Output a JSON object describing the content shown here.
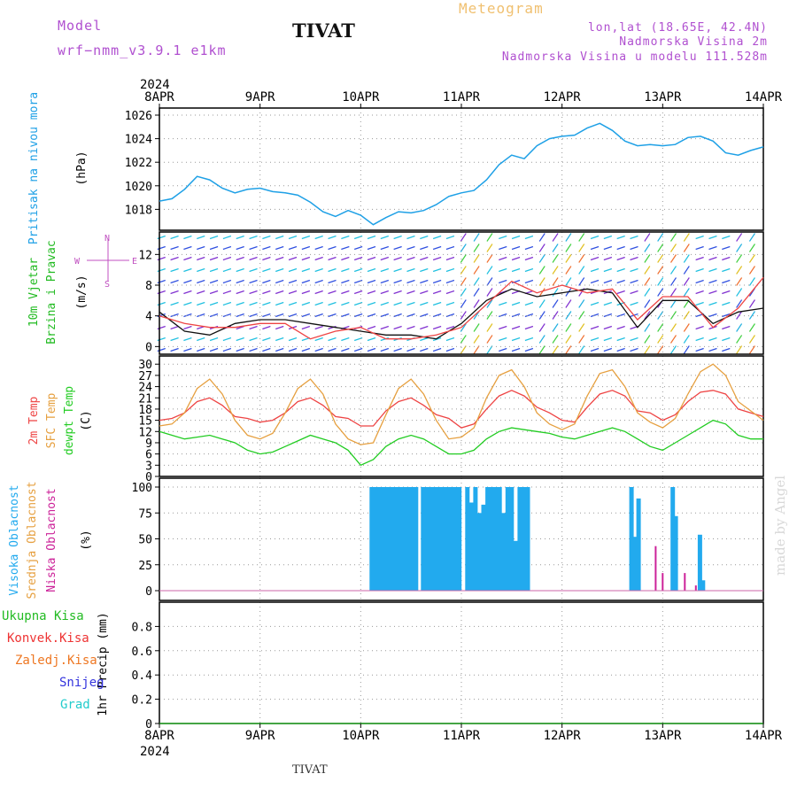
{
  "header": {
    "model_label": "Model",
    "model_name": "wrf−nmm_v3.9.1  e1km",
    "station": "TIVAT",
    "product": "Meteogram",
    "coords": "lon,lat (18.65E, 42.4N)",
    "height": "Nadmorska Visina 2m",
    "model_height": "Nadmorska Visina u modelu 111.528m",
    "footer_station": "TIVAT",
    "credit": "made by Angel"
  },
  "colors": {
    "pressure": "#1ea0e6",
    "temp2m": "#ee4444",
    "sfc": "#e6a040",
    "dew": "#22cc22",
    "cloud_high": "#22aaee",
    "cloud_low": "#cc2299",
    "precip_total": "#22bb22",
    "precip_conv": "#ee3333",
    "precip_frz": "#ee7722",
    "precip_snow": "#3333dd",
    "precip_grad": "#22cccc",
    "compass": "#c050c0"
  },
  "chart_data": [
    {
      "type": "line",
      "panel": "pressure",
      "year": "2024",
      "x_ticks": [
        "8APR",
        "9APR",
        "10APR",
        "11APR",
        "12APR",
        "13APR",
        "14APR"
      ],
      "ylabel": "(hPa)",
      "side_label": "Pritisak na nivou mora",
      "ylim": [
        1016.3,
        1026
      ],
      "y_ticks": [
        "1018",
        "1020",
        "1022",
        "1024",
        "1026"
      ],
      "x_days": [
        0,
        0.125,
        0.25,
        0.375,
        0.5,
        0.625,
        0.75,
        0.875,
        1,
        1.125,
        1.25,
        1.375,
        1.5,
        1.625,
        1.75,
        1.875,
        2,
        2.125,
        2.25,
        2.375,
        2.5,
        2.625,
        2.75,
        2.875,
        3,
        3.125,
        3.25,
        3.375,
        3.5,
        3.625,
        3.75,
        3.875,
        4,
        4.125,
        4.25,
        4.375,
        4.5,
        4.625,
        4.75,
        4.875,
        5,
        5.125,
        5.25,
        5.375,
        5.5,
        5.625,
        5.75,
        5.875,
        6
      ],
      "values": [
        1018.7,
        1018.9,
        1019.7,
        1020.8,
        1020.5,
        1019.8,
        1019.4,
        1019.7,
        1019.8,
        1019.5,
        1019.4,
        1019.2,
        1018.6,
        1017.8,
        1017.4,
        1017.9,
        1017.5,
        1016.7,
        1017.3,
        1017.8,
        1017.7,
        1017.9,
        1018.4,
        1019.1,
        1019.4,
        1019.6,
        1020.5,
        1021.8,
        1022.6,
        1022.3,
        1023.4,
        1024.0,
        1024.2,
        1024.3,
        1024.9,
        1025.3,
        1024.7,
        1023.8,
        1023.4,
        1023.5,
        1023.4,
        1023.5,
        1024.1,
        1024.2,
        1023.8,
        1022.8,
        1022.6,
        1023.0,
        1023.3
      ]
    },
    {
      "type": "line",
      "panel": "wind",
      "side_label_1": "10m Vjetar",
      "side_label_2": "Brzina i Pravac",
      "ylabel": "(m/s)",
      "ylim": [
        -1,
        14
      ],
      "y_ticks": [
        "0",
        "4",
        "8",
        "12"
      ],
      "compass": {
        "n": "N",
        "s": "S",
        "e": "E",
        "w": "W"
      },
      "x_days": [
        0,
        0.25,
        0.5,
        0.75,
        1,
        1.25,
        1.5,
        1.75,
        2,
        2.25,
        2.5,
        2.75,
        3,
        3.25,
        3.5,
        3.75,
        4,
        4.25,
        4.5,
        4.75,
        5,
        5.25,
        5.5,
        5.75,
        6
      ],
      "series": [
        {
          "values": [
            4.5,
            2.0,
            1.5,
            3.0,
            3.5,
            3.5,
            3.0,
            2.5,
            2.0,
            1.5,
            1.5,
            1.0,
            3.0,
            6.0,
            7.5,
            6.5,
            7.0,
            7.5,
            7.0,
            2.5,
            6.0,
            6.0,
            3.0,
            4.5,
            5.0
          ]
        },
        {
          "values": [
            4.0,
            3.0,
            2.5,
            2.5,
            3.0,
            3.0,
            1.0,
            2.0,
            2.5,
            1.0,
            1.0,
            1.5,
            2.5,
            5.5,
            8.5,
            7.0,
            8.0,
            7.0,
            7.5,
            3.5,
            6.5,
            6.5,
            2.5,
            5.0,
            9.0
          ]
        }
      ]
    },
    {
      "type": "line",
      "panel": "temperature",
      "side_label_1": "2m Temp",
      "side_label_2": "SFC Temp",
      "side_label_3": "dewpt Temp",
      "ylabel": "(C)",
      "ylim": [
        0,
        31
      ],
      "y_ticks": [
        "0",
        "3",
        "6",
        "9",
        "12",
        "15",
        "18",
        "21",
        "24",
        "27",
        "30"
      ],
      "x_days": [
        0,
        0.125,
        0.25,
        0.375,
        0.5,
        0.625,
        0.75,
        0.875,
        1,
        1.125,
        1.25,
        1.375,
        1.5,
        1.625,
        1.75,
        1.875,
        2,
        2.125,
        2.25,
        2.375,
        2.5,
        2.625,
        2.75,
        2.875,
        3,
        3.125,
        3.25,
        3.375,
        3.5,
        3.625,
        3.75,
        3.875,
        4,
        4.125,
        4.25,
        4.375,
        4.5,
        4.625,
        4.75,
        4.875,
        5,
        5.125,
        5.25,
        5.375,
        5.5,
        5.625,
        5.75,
        5.875,
        6
      ],
      "series": [
        {
          "name": "2m Temp",
          "values": [
            15,
            15.5,
            17,
            20,
            21,
            19,
            16,
            15.5,
            14.5,
            15,
            17,
            20,
            21,
            19,
            16,
            15.5,
            13.5,
            13.5,
            17.5,
            20,
            21,
            19,
            16.5,
            15.5,
            13,
            14,
            18,
            21.5,
            23,
            21.5,
            18.5,
            17,
            15,
            14.5,
            18.5,
            22,
            23,
            21.5,
            17.5,
            17,
            15,
            16.5,
            20,
            22.5,
            23,
            22,
            18,
            17,
            16
          ]
        },
        {
          "name": "SFC Temp",
          "values": [
            13.5,
            14,
            17,
            23.5,
            26,
            22,
            15,
            11,
            10,
            11.5,
            17,
            23.5,
            26,
            22,
            14,
            10,
            8.5,
            9,
            16.5,
            23.5,
            26,
            22,
            15,
            10,
            10.5,
            13,
            21,
            27,
            28.5,
            24,
            17,
            14,
            12.5,
            14,
            21.5,
            27.5,
            28.5,
            24,
            17,
            14.5,
            13,
            15.5,
            22,
            28,
            30,
            27,
            20,
            17.5,
            15
          ]
        },
        {
          "name": "dewpt Temp",
          "values": [
            12,
            11,
            10,
            10.5,
            11,
            10,
            9,
            7,
            6,
            6.5,
            8,
            9.5,
            11,
            10,
            9,
            7,
            3,
            4.5,
            8,
            10,
            11,
            10,
            8,
            6,
            6,
            7,
            10,
            12,
            13,
            12.5,
            12,
            11.5,
            10.5,
            10,
            11,
            12,
            13,
            12,
            10,
            8,
            7,
            9,
            11,
            13,
            15,
            14,
            11,
            10,
            10
          ]
        }
      ]
    },
    {
      "type": "bar",
      "panel": "cloud",
      "side_label_1": "Visoka Oblacnost",
      "side_label_2": "Srednja Oblacnost",
      "side_label_3": "Niska Oblacnost",
      "ylabel": "(%)",
      "ylim": [
        0,
        100
      ],
      "y_ticks": [
        "0",
        "25",
        "50",
        "75",
        "100"
      ],
      "x_days": [
        2.11,
        2.15,
        2.19,
        2.23,
        2.27,
        2.31,
        2.35,
        2.39,
        2.43,
        2.47,
        2.51,
        2.55,
        2.62,
        2.66,
        2.7,
        2.74,
        2.78,
        2.82,
        2.86,
        2.9,
        2.94,
        2.98,
        3.06,
        3.1,
        3.14,
        3.18,
        3.22,
        3.26,
        3.3,
        3.34,
        3.38,
        3.42,
        3.46,
        3.5,
        3.54,
        3.58,
        3.62,
        3.66,
        4.69,
        4.72,
        4.76,
        5.1,
        5.13,
        5.37,
        5.4
      ],
      "series": [
        {
          "name": "Visoka Oblacnost",
          "values": [
            100,
            100,
            100,
            100,
            100,
            100,
            100,
            100,
            100,
            100,
            100,
            100,
            100,
            100,
            100,
            100,
            100,
            100,
            100,
            100,
            100,
            100,
            100,
            85,
            100,
            75,
            83,
            100,
            100,
            100,
            100,
            75,
            100,
            100,
            48,
            100,
            100,
            100,
            100,
            52,
            89,
            100,
            72,
            54,
            10
          ]
        },
        {
          "name": "Niska Oblacnost",
          "x_days": [
            4.93,
            5.0,
            5.22,
            5.33
          ],
          "values": [
            43,
            17,
            17,
            5
          ]
        }
      ]
    },
    {
      "type": "line",
      "panel": "precip",
      "side_label": "1hr Precip (mm)",
      "legend": [
        "Ukupna Kisa",
        "Konvek.Kisa",
        "Zaledj.Kisa",
        "Snijeg",
        "Grad"
      ],
      "ylim": [
        0,
        1
      ],
      "y_ticks": [
        "0",
        "0.2",
        "0.4",
        "0.6",
        "0.8"
      ],
      "x_ticks": [
        "8APR",
        "9APR",
        "10APR",
        "11APR",
        "12APR",
        "13APR",
        "14APR"
      ],
      "year": "2024",
      "values": [
        0,
        0,
        0,
        0,
        0,
        0,
        0
      ]
    }
  ]
}
